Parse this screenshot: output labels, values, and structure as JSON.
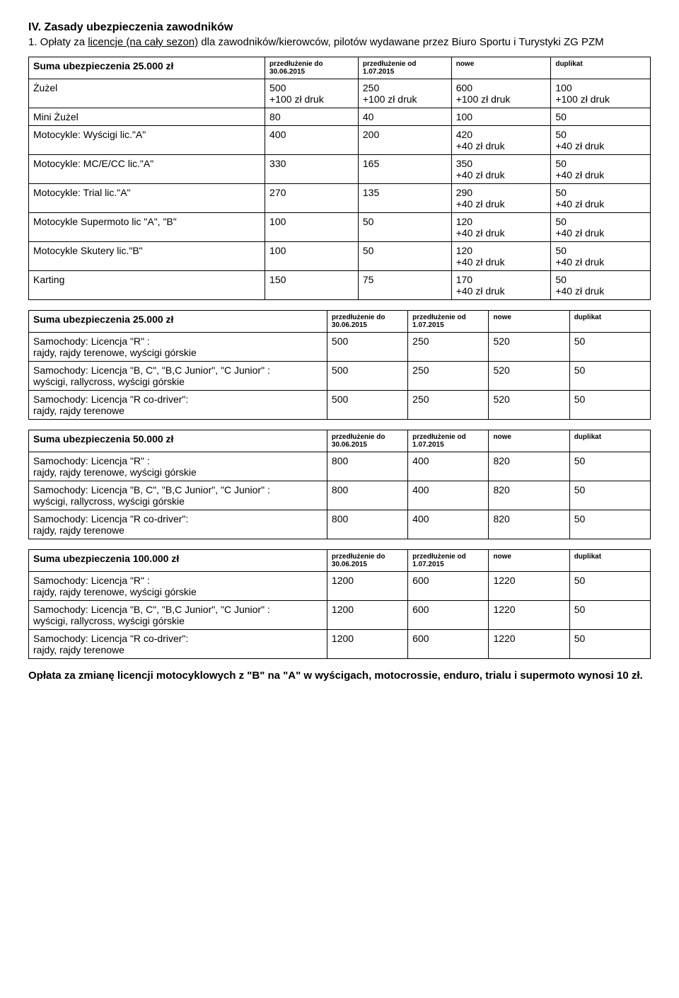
{
  "heading": "IV. Zasady ubezpieczenia zawodników",
  "intro_prefix": "1. Opłaty za ",
  "intro_underlined": "licencje (na cały sezon)",
  "intro_suffix": " dla zawodników/kierowców, pilotów wydawane przez Biuro Sportu i Turystyki ZG PZM",
  "col_labels": {
    "ext_do": "przedłużenie do 30.06.2015",
    "ext_od": "przedłużenie od 1.07.2015",
    "nowe": "nowe",
    "dup": "duplikat",
    "ext_do2": "przedłużenie do 30.06.2015",
    "ext_od2": "przedłużenie od 1.07.2015"
  },
  "table1": {
    "title": "Suma ubezpieczenia 25.000 zł",
    "rows": [
      {
        "name": "Żużel",
        "c1": "500\n+100 zł druk",
        "c2": "250\n+100 zł druk",
        "c3": "600\n+100 zł druk",
        "c4": "100\n+100 zł druk"
      },
      {
        "name": "Mini Żużel",
        "c1": "80",
        "c2": "40",
        "c3": "100",
        "c4": "50"
      },
      {
        "name": "Motocykle: Wyścigi lic.\"A\"",
        "c1": "400",
        "c2": "200",
        "c3": "420\n+40 zł druk",
        "c4": "50\n+40 zł druk"
      },
      {
        "name": "Motocykle: MC/E/CC lic.\"A\"",
        "c1": "330",
        "c2": "165",
        "c3": "350\n+40 zł druk",
        "c4": "50\n+40 zł druk"
      },
      {
        "name": "Motocykle: Trial lic.\"A\"",
        "c1": "270",
        "c2": "135",
        "c3": "290\n+40 zł druk",
        "c4": "50\n+40 zł druk"
      },
      {
        "name": "Motocykle Supermoto lic \"A\", \"B\"",
        "c1": "100",
        "c2": "50",
        "c3": "120\n+40 zł druk",
        "c4": "50\n+40 zł druk"
      },
      {
        "name": "Motocykle Skutery lic.\"B\"",
        "c1": "100",
        "c2": "50",
        "c3": "120\n+40 zł druk",
        "c4": "50\n+40 zł druk"
      },
      {
        "name": "Karting",
        "c1": "150",
        "c2": "75",
        "c3": "170\n+40 zł druk",
        "c4": "50\n+40 zł druk"
      }
    ]
  },
  "car_row_labels": {
    "r": "Samochody: Licencja \"R\" :\nrajdy, rajdy terenowe, wyścigi górskie",
    "bc": "Samochody: Licencja \"B, C\", \"B,C Junior\", \"C Junior\" :\nwyścigi, rallycross, wyścigi górskie",
    "co": "Samochody: Licencja \"R co-driver\":\nrajdy, rajdy terenowe"
  },
  "table2": {
    "title": "Suma ubezpieczenia 25.000 zł",
    "rows": [
      {
        "key": "r",
        "c1": "500",
        "c2": "250",
        "c3": "520",
        "c4": "50"
      },
      {
        "key": "bc",
        "c1": "500",
        "c2": "250",
        "c3": "520",
        "c4": "50"
      },
      {
        "key": "co",
        "c1": "500",
        "c2": "250",
        "c3": "520",
        "c4": "50"
      }
    ]
  },
  "table3": {
    "title": "Suma ubezpieczenia 50.000 zł",
    "rows": [
      {
        "key": "r",
        "c1": "800",
        "c2": "400",
        "c3": "820",
        "c4": "50"
      },
      {
        "key": "bc",
        "c1": "800",
        "c2": "400",
        "c3": "820",
        "c4": "50"
      },
      {
        "key": "co",
        "c1": "800",
        "c2": "400",
        "c3": "820",
        "c4": "50"
      }
    ]
  },
  "table4": {
    "title": "Suma ubezpieczenia 100.000 zł",
    "rows": [
      {
        "key": "r",
        "c1": "1200",
        "c2": "600",
        "c3": "1220",
        "c4": "50"
      },
      {
        "key": "bc",
        "c1": "1200",
        "c2": "600",
        "c3": "1220",
        "c4": "50"
      },
      {
        "key": "co",
        "c1": "1200",
        "c2": "600",
        "c3": "1220",
        "c4": "50"
      }
    ]
  },
  "footnote": "Opłata za zmianę licencji motocyklowych z \"B\" na \"A\" w wyścigach, motocrossie, enduro, trialu i supermoto wynosi 10 zł.",
  "layout": {
    "col_widths_t1": [
      "38%",
      "15%",
      "15%",
      "16%",
      "16%"
    ],
    "col_widths_car": [
      "48%",
      "13%",
      "13%",
      "13%",
      "13%"
    ],
    "header_fontsize": "10px"
  }
}
